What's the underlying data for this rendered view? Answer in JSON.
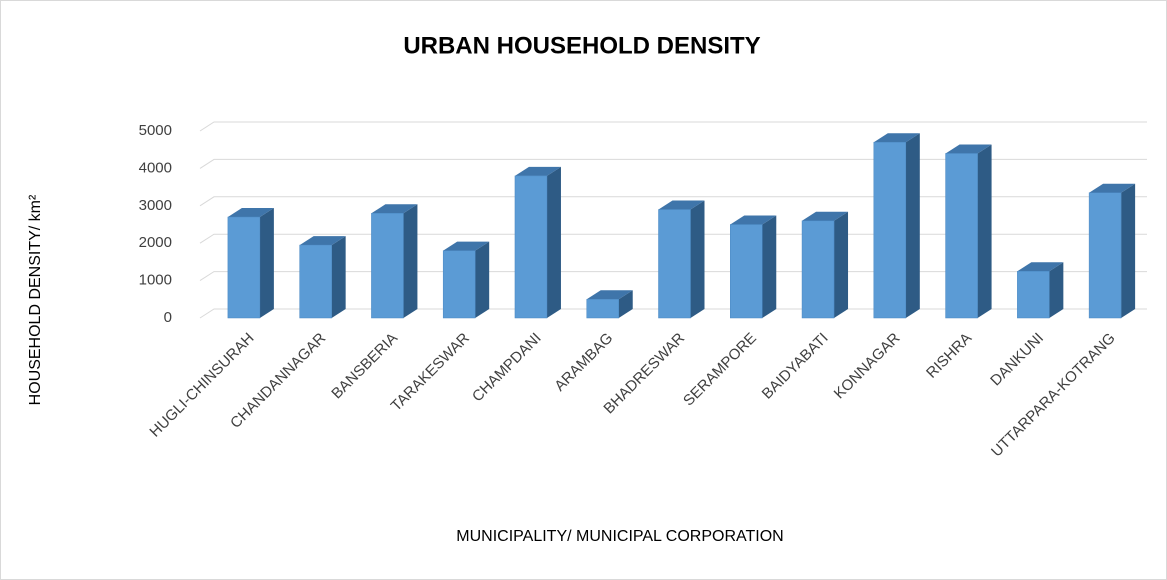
{
  "chart_data": {
    "type": "bar3d",
    "title": "URBAN HOUSEHOLD DENSITY",
    "x_label": "MUNICIPALITY/  MUNICIPAL CORPORATION",
    "y_label": "HOUSEHOLD  DENSITY/  km²",
    "categories": [
      "HUGLI-CHINSURAH",
      "CHANDANNAGAR",
      "BANSBERIA",
      "TARAKESWAR",
      "CHAMPDANI",
      "ARAMBAG",
      "BHADRESWAR",
      "SERAMPORE",
      "BAIDYABATI",
      "KONNAGAR",
      "RISHRA",
      "DANKUNI",
      "UTTARPARA-KOTRANG"
    ],
    "values": [
      2700,
      1950,
      2800,
      1800,
      3800,
      500,
      2900,
      2500,
      2600,
      4700,
      4400,
      1250,
      3350
    ],
    "color": "#5b9bd5",
    "ylim": [
      0,
      5000
    ],
    "yticks": [
      0,
      1000,
      2000,
      3000,
      4000,
      5000
    ],
    "grid": true
  }
}
